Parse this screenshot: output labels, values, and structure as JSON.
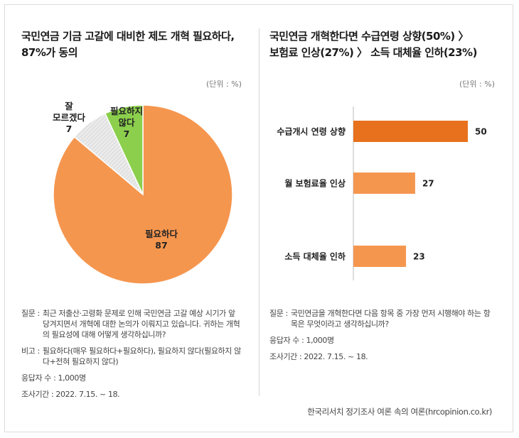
{
  "left": {
    "title_line1": "국민연금 기금 고갈에 대비한 제도 개혁 필요하다,",
    "title_line2": "87%가 동의",
    "unit": "(단위 : %)",
    "notes": {
      "question_label": "질문 :",
      "question_text": "최근 저출산·고령화 문제로 인해 국민연금 고갈 예상 시기가 앞당겨지면서 개혁에 대한 논의가 이뤄지고 있습니다. 귀하는 개혁의 필요성에 대해 어떻게 생각하십니까?",
      "remark_label": "비고 :",
      "remark_text": "필요하다(매우 필요하다+필요하다), 필요하지 않다(필요하지 않다+전혀 필요하지 않다)",
      "respondents": "응답자 수 : 1,000명",
      "period": "조사기간 : 2022. 7.15. ~ 18."
    }
  },
  "right": {
    "title_line1": "국민연금 개혁한다면 수급연령 상향(50%) 〉",
    "title_line2": "보험료 인상(27%) 〉 소득 대체율 인하(23%)",
    "unit": "(단위 : %)",
    "notes": {
      "question_label": "질문 :",
      "question_text": "국민연금을 개혁한다면 다음 항목 중 가장 먼저 시행해야 하는 항목은 무엇이라고 생각하십니까?",
      "respondents": "응답자 수 : 1,000명",
      "period": "조사기간 : 2022. 7.15. ~ 18."
    }
  },
  "source": "한국리서치 정기조사 여론 속의 여론(hrcopinion.co.kr)",
  "colors": {
    "pie_main": "#f5964f",
    "pie_green": "#8ccf4d",
    "pie_gray": "#ebebeb",
    "bar_dark": "#e8711d",
    "bar_light": "#f5964f"
  },
  "chart_data": [
    {
      "type": "pie",
      "slices": [
        {
          "label_lines": [
            "필요하다"
          ],
          "value": 87
        },
        {
          "label_lines": [
            "잘",
            "모르겠다"
          ],
          "value": 7
        },
        {
          "label_lines": [
            "필요하지",
            "않다"
          ],
          "value": 7
        }
      ]
    },
    {
      "type": "bar",
      "orientation": "horizontal",
      "categories": [
        "수급개시 연령 상향",
        "월 보험료율 인상",
        "소득 대체율 인하"
      ],
      "values": [
        50,
        27,
        23
      ]
    }
  ]
}
